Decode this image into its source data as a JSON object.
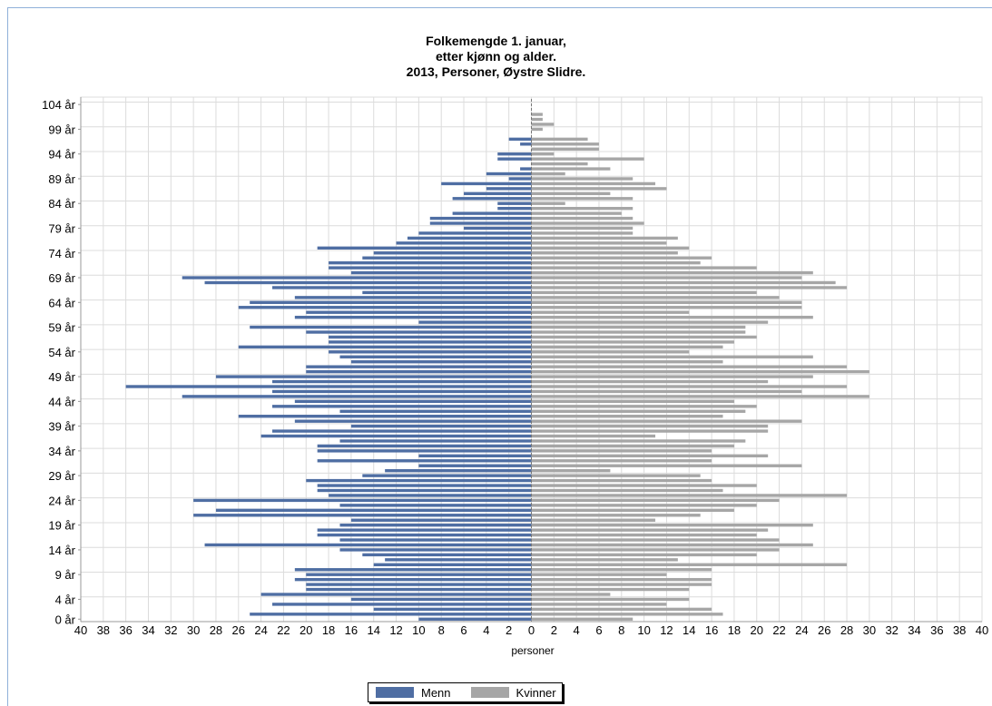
{
  "chart_data": {
    "type": "bar",
    "orientation": "horizontal-pyramid",
    "title": [
      "Folkemengde 1. januar,",
      "etter kjønn og alder.",
      "2013, Personer, Øystre Slidre."
    ],
    "xlabel": "personer",
    "xlim": [
      -40,
      40
    ],
    "x_ticks": [
      40,
      38,
      36,
      34,
      32,
      30,
      28,
      26,
      24,
      22,
      20,
      18,
      16,
      14,
      12,
      10,
      8,
      6,
      4,
      2,
      0,
      2,
      4,
      6,
      8,
      10,
      12,
      14,
      16,
      18,
      20,
      22,
      24,
      26,
      28,
      30,
      32,
      34,
      36,
      38,
      40
    ],
    "y_tick_labels": [
      "0 år",
      "4 år",
      "9 år",
      "14 år",
      "19 år",
      "24 år",
      "29 år",
      "34 år",
      "39 år",
      "44 år",
      "49 år",
      "54 år",
      "59 år",
      "64 år",
      "69 år",
      "74 år",
      "79 år",
      "84 år",
      "89 år",
      "94 år",
      "99 år",
      "104 år"
    ],
    "categories": [
      "0 år",
      "1 år",
      "2 år",
      "3 år",
      "4 år",
      "5 år",
      "6 år",
      "7 år",
      "8 år",
      "9 år",
      "10 år",
      "11 år",
      "12 år",
      "13 år",
      "14 år",
      "15 år",
      "16 år",
      "17 år",
      "18 år",
      "19 år",
      "20 år",
      "21 år",
      "22 år",
      "23 år",
      "24 år",
      "25 år",
      "26 år",
      "27 år",
      "28 år",
      "29 år",
      "30 år",
      "31 år",
      "32 år",
      "33 år",
      "34 år",
      "35 år",
      "36 år",
      "37 år",
      "38 år",
      "39 år",
      "40 år",
      "41 år",
      "42 år",
      "43 år",
      "44 år",
      "45 år",
      "46 år",
      "47 år",
      "48 år",
      "49 år",
      "50 år",
      "51 år",
      "52 år",
      "53 år",
      "54 år",
      "55 år",
      "56 år",
      "57 år",
      "58 år",
      "59 år",
      "60 år",
      "61 år",
      "62 år",
      "63 år",
      "64 år",
      "65 år",
      "66 år",
      "67 år",
      "68 år",
      "69 år",
      "70 år",
      "71 år",
      "72 år",
      "73 år",
      "74 år",
      "75 år",
      "76 år",
      "77 år",
      "78 år",
      "79 år",
      "80 år",
      "81 år",
      "82 år",
      "83 år",
      "84 år",
      "85 år",
      "86 år",
      "87 år",
      "88 år",
      "89 år",
      "90 år",
      "91 år",
      "92 år",
      "93 år",
      "94 år",
      "95 år",
      "96 år",
      "97 år",
      "98 år",
      "99 år",
      "100 år",
      "101 år",
      "102 år",
      "103 år",
      "104 år",
      "105 år"
    ],
    "series": [
      {
        "name": "Menn",
        "color": "#4f6ea3",
        "values": [
          10,
          25,
          14,
          23,
          16,
          24,
          20,
          20,
          21,
          20,
          21,
          14,
          13,
          15,
          17,
          29,
          17,
          19,
          19,
          17,
          16,
          30,
          28,
          17,
          30,
          18,
          19,
          19,
          20,
          15,
          13,
          10,
          19,
          10,
          19,
          19,
          17,
          24,
          23,
          16,
          21,
          26,
          17,
          23,
          21,
          31,
          23,
          36,
          23,
          28,
          20,
          20,
          16,
          17,
          18,
          26,
          18,
          18,
          20,
          25,
          10,
          21,
          20,
          26,
          25,
          21,
          15,
          23,
          29,
          31,
          16,
          18,
          18,
          15,
          14,
          19,
          12,
          11,
          10,
          6,
          9,
          9,
          7,
          3,
          3,
          7,
          6,
          4,
          8,
          2,
          4,
          1,
          0,
          3,
          3,
          0,
          1,
          2,
          0,
          0,
          0,
          0,
          0,
          0,
          0,
          0
        ]
      },
      {
        "name": "Kvinner",
        "color": "#a6a6a6",
        "values": [
          9,
          17,
          16,
          12,
          14,
          7,
          14,
          16,
          16,
          12,
          16,
          28,
          13,
          20,
          22,
          25,
          22,
          20,
          21,
          25,
          11,
          15,
          18,
          20,
          22,
          28,
          17,
          20,
          16,
          15,
          7,
          24,
          16,
          21,
          16,
          18,
          19,
          11,
          21,
          21,
          24,
          17,
          19,
          20,
          18,
          30,
          24,
          28,
          21,
          25,
          30,
          28,
          17,
          25,
          14,
          17,
          18,
          20,
          19,
          19,
          21,
          25,
          14,
          24,
          24,
          22,
          20,
          28,
          27,
          24,
          25,
          20,
          15,
          16,
          13,
          14,
          12,
          13,
          9,
          9,
          10,
          9,
          8,
          9,
          3,
          9,
          7,
          12,
          11,
          9,
          3,
          7,
          5,
          10,
          2,
          6,
          6,
          5,
          0,
          1,
          2,
          1,
          1,
          0,
          0,
          0
        ]
      }
    ],
    "grid": true,
    "legend": "bottom-center"
  }
}
